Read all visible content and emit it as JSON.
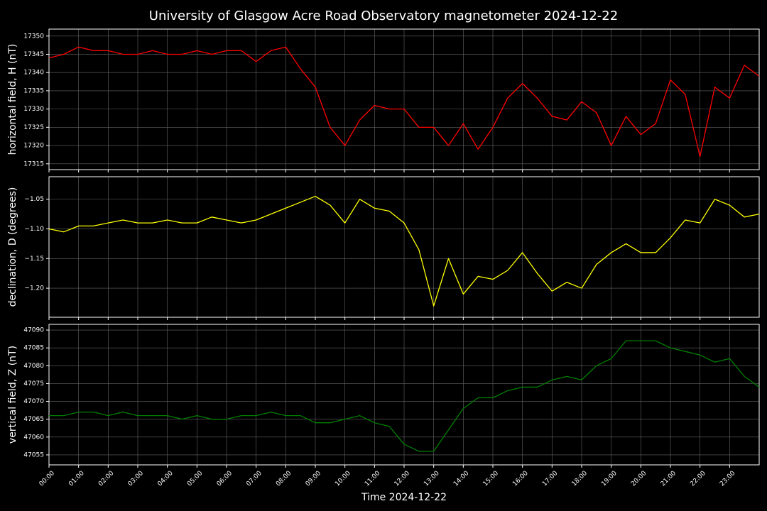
{
  "chart_data": [
    {
      "type": "line",
      "title": "University of Glasgow Acre Road Observatory magnetometer 2024-12-22",
      "ylabel": "horizontal field, H (nT)",
      "x": [
        "00:00",
        "00:30",
        "01:00",
        "01:30",
        "02:00",
        "02:30",
        "03:00",
        "03:30",
        "04:00",
        "04:30",
        "05:00",
        "05:30",
        "06:00",
        "06:30",
        "07:00",
        "07:30",
        "08:00",
        "08:30",
        "09:00",
        "09:30",
        "10:00",
        "10:30",
        "11:00",
        "11:30",
        "12:00",
        "12:30",
        "13:00",
        "13:30",
        "14:00",
        "14:30",
        "15:00",
        "15:30",
        "16:00",
        "16:30",
        "17:00",
        "17:30",
        "18:00",
        "18:30",
        "19:00",
        "19:30",
        "20:00",
        "20:30",
        "21:00",
        "21:30",
        "22:00",
        "22:30",
        "23:00",
        "23:30",
        "24:00"
      ],
      "series": [
        {
          "name": "H",
          "color": "#ff0000",
          "values": [
            17344,
            17345,
            17347,
            17346,
            17346,
            17345,
            17345,
            17346,
            17345,
            17345,
            17346,
            17345,
            17346,
            17346,
            17343,
            17346,
            17347,
            17341,
            17336,
            17325,
            17320,
            17327,
            17331,
            17330,
            17330,
            17325,
            17325,
            17320,
            17326,
            17319,
            17325,
            17333,
            17337,
            17333,
            17328,
            17327,
            17332,
            17329,
            17320,
            17328,
            17323,
            17326,
            17338,
            17334,
            17317,
            17336,
            17333,
            17342,
            17339
          ]
        }
      ],
      "xlim": [
        "00:00",
        "24:00"
      ],
      "xticks": [
        "00:00",
        "01:00",
        "02:00",
        "03:00",
        "04:00",
        "05:00",
        "06:00",
        "07:00",
        "08:00",
        "09:00",
        "10:00",
        "11:00",
        "12:00",
        "13:00",
        "14:00",
        "15:00",
        "16:00",
        "17:00",
        "18:00",
        "19:00",
        "20:00",
        "21:00",
        "22:00",
        "23:00"
      ],
      "ylim": [
        17313.4,
        17351.9
      ],
      "yticks": [
        17315,
        17320,
        17325,
        17330,
        17335,
        17340,
        17345,
        17350
      ],
      "grid": true
    },
    {
      "type": "line",
      "ylabel": "declination, D (degrees)",
      "x": [
        "00:00",
        "00:30",
        "01:00",
        "01:30",
        "02:00",
        "02:30",
        "03:00",
        "03:30",
        "04:00",
        "04:30",
        "05:00",
        "05:30",
        "06:00",
        "06:30",
        "07:00",
        "07:30",
        "08:00",
        "08:30",
        "09:00",
        "09:30",
        "10:00",
        "10:30",
        "11:00",
        "11:30",
        "12:00",
        "12:30",
        "13:00",
        "13:30",
        "14:00",
        "14:30",
        "15:00",
        "15:30",
        "16:00",
        "16:30",
        "17:00",
        "17:30",
        "18:00",
        "18:30",
        "19:00",
        "19:30",
        "20:00",
        "20:30",
        "21:00",
        "21:30",
        "22:00",
        "22:30",
        "23:00",
        "23:30",
        "24:00"
      ],
      "series": [
        {
          "name": "D",
          "color": "#ffff00",
          "values": [
            -1.1,
            -1.105,
            -1.095,
            -1.095,
            -1.09,
            -1.085,
            -1.09,
            -1.09,
            -1.085,
            -1.09,
            -1.09,
            -1.08,
            -1.085,
            -1.09,
            -1.085,
            -1.075,
            -1.065,
            -1.055,
            -1.045,
            -1.06,
            -1.09,
            -1.05,
            -1.065,
            -1.07,
            -1.09,
            -1.135,
            -1.23,
            -1.15,
            -1.21,
            -1.18,
            -1.185,
            -1.17,
            -1.14,
            -1.175,
            -1.205,
            -1.19,
            -1.2,
            -1.16,
            -1.14,
            -1.125,
            -1.14,
            -1.14,
            -1.115,
            -1.085,
            -1.09,
            -1.05,
            -1.06,
            -1.08,
            -1.075
          ]
        }
      ],
      "xlim": [
        "00:00",
        "24:00"
      ],
      "xticks": [
        "00:00",
        "01:00",
        "02:00",
        "03:00",
        "04:00",
        "05:00",
        "06:00",
        "07:00",
        "08:00",
        "09:00",
        "10:00",
        "11:00",
        "12:00",
        "13:00",
        "14:00",
        "15:00",
        "16:00",
        "17:00",
        "18:00",
        "19:00",
        "20:00",
        "21:00",
        "22:00",
        "23:00"
      ],
      "ylim": [
        -1.249,
        -1.012
      ],
      "yticks": [
        {
          "value": -1.2,
          "label": "−1.20"
        },
        {
          "value": -1.15,
          "label": "−1.15"
        },
        {
          "value": -1.1,
          "label": "−1.10"
        },
        {
          "value": -1.05,
          "label": "−1.05"
        }
      ],
      "grid": true
    },
    {
      "type": "line",
      "ylabel": "vertical field, Z (nT)",
      "xlabel": "Time 2024-12-22",
      "x": [
        "00:00",
        "00:30",
        "01:00",
        "01:30",
        "02:00",
        "02:30",
        "03:00",
        "03:30",
        "04:00",
        "04:30",
        "05:00",
        "05:30",
        "06:00",
        "06:30",
        "07:00",
        "07:30",
        "08:00",
        "08:30",
        "09:00",
        "09:30",
        "10:00",
        "10:30",
        "11:00",
        "11:30",
        "12:00",
        "12:30",
        "13:00",
        "13:30",
        "14:00",
        "14:30",
        "15:00",
        "15:30",
        "16:00",
        "16:30",
        "17:00",
        "17:30",
        "18:00",
        "18:30",
        "19:00",
        "19:30",
        "20:00",
        "20:30",
        "21:00",
        "21:30",
        "22:00",
        "22:30",
        "23:00",
        "23:30",
        "24:00"
      ],
      "series": [
        {
          "name": "Z",
          "color": "#008000",
          "values": [
            47066,
            47066,
            47067,
            47067,
            47066,
            47067,
            47066,
            47066,
            47066,
            47065,
            47066,
            47065,
            47065,
            47066,
            47066,
            47067,
            47066,
            47066,
            47064,
            47064,
            47065,
            47066,
            47064,
            47063,
            47058,
            47056,
            47056,
            47062,
            47068,
            47071,
            47071,
            47073,
            47074,
            47074,
            47076,
            47077,
            47076,
            47080,
            47082,
            47087,
            47087,
            47087,
            47085,
            47084,
            47083,
            47081,
            47082,
            47077,
            47074
          ]
        }
      ],
      "xlim": [
        "00:00",
        "24:00"
      ],
      "xticks": [
        "00:00",
        "01:00",
        "02:00",
        "03:00",
        "04:00",
        "05:00",
        "06:00",
        "07:00",
        "08:00",
        "09:00",
        "10:00",
        "11:00",
        "12:00",
        "13:00",
        "14:00",
        "15:00",
        "16:00",
        "17:00",
        "18:00",
        "19:00",
        "20:00",
        "21:00",
        "22:00",
        "23:00"
      ],
      "ylim": [
        47052.2,
        47091.6
      ],
      "yticks": [
        47055,
        47060,
        47065,
        47070,
        47075,
        47080,
        47085,
        47090
      ],
      "grid": true
    }
  ]
}
